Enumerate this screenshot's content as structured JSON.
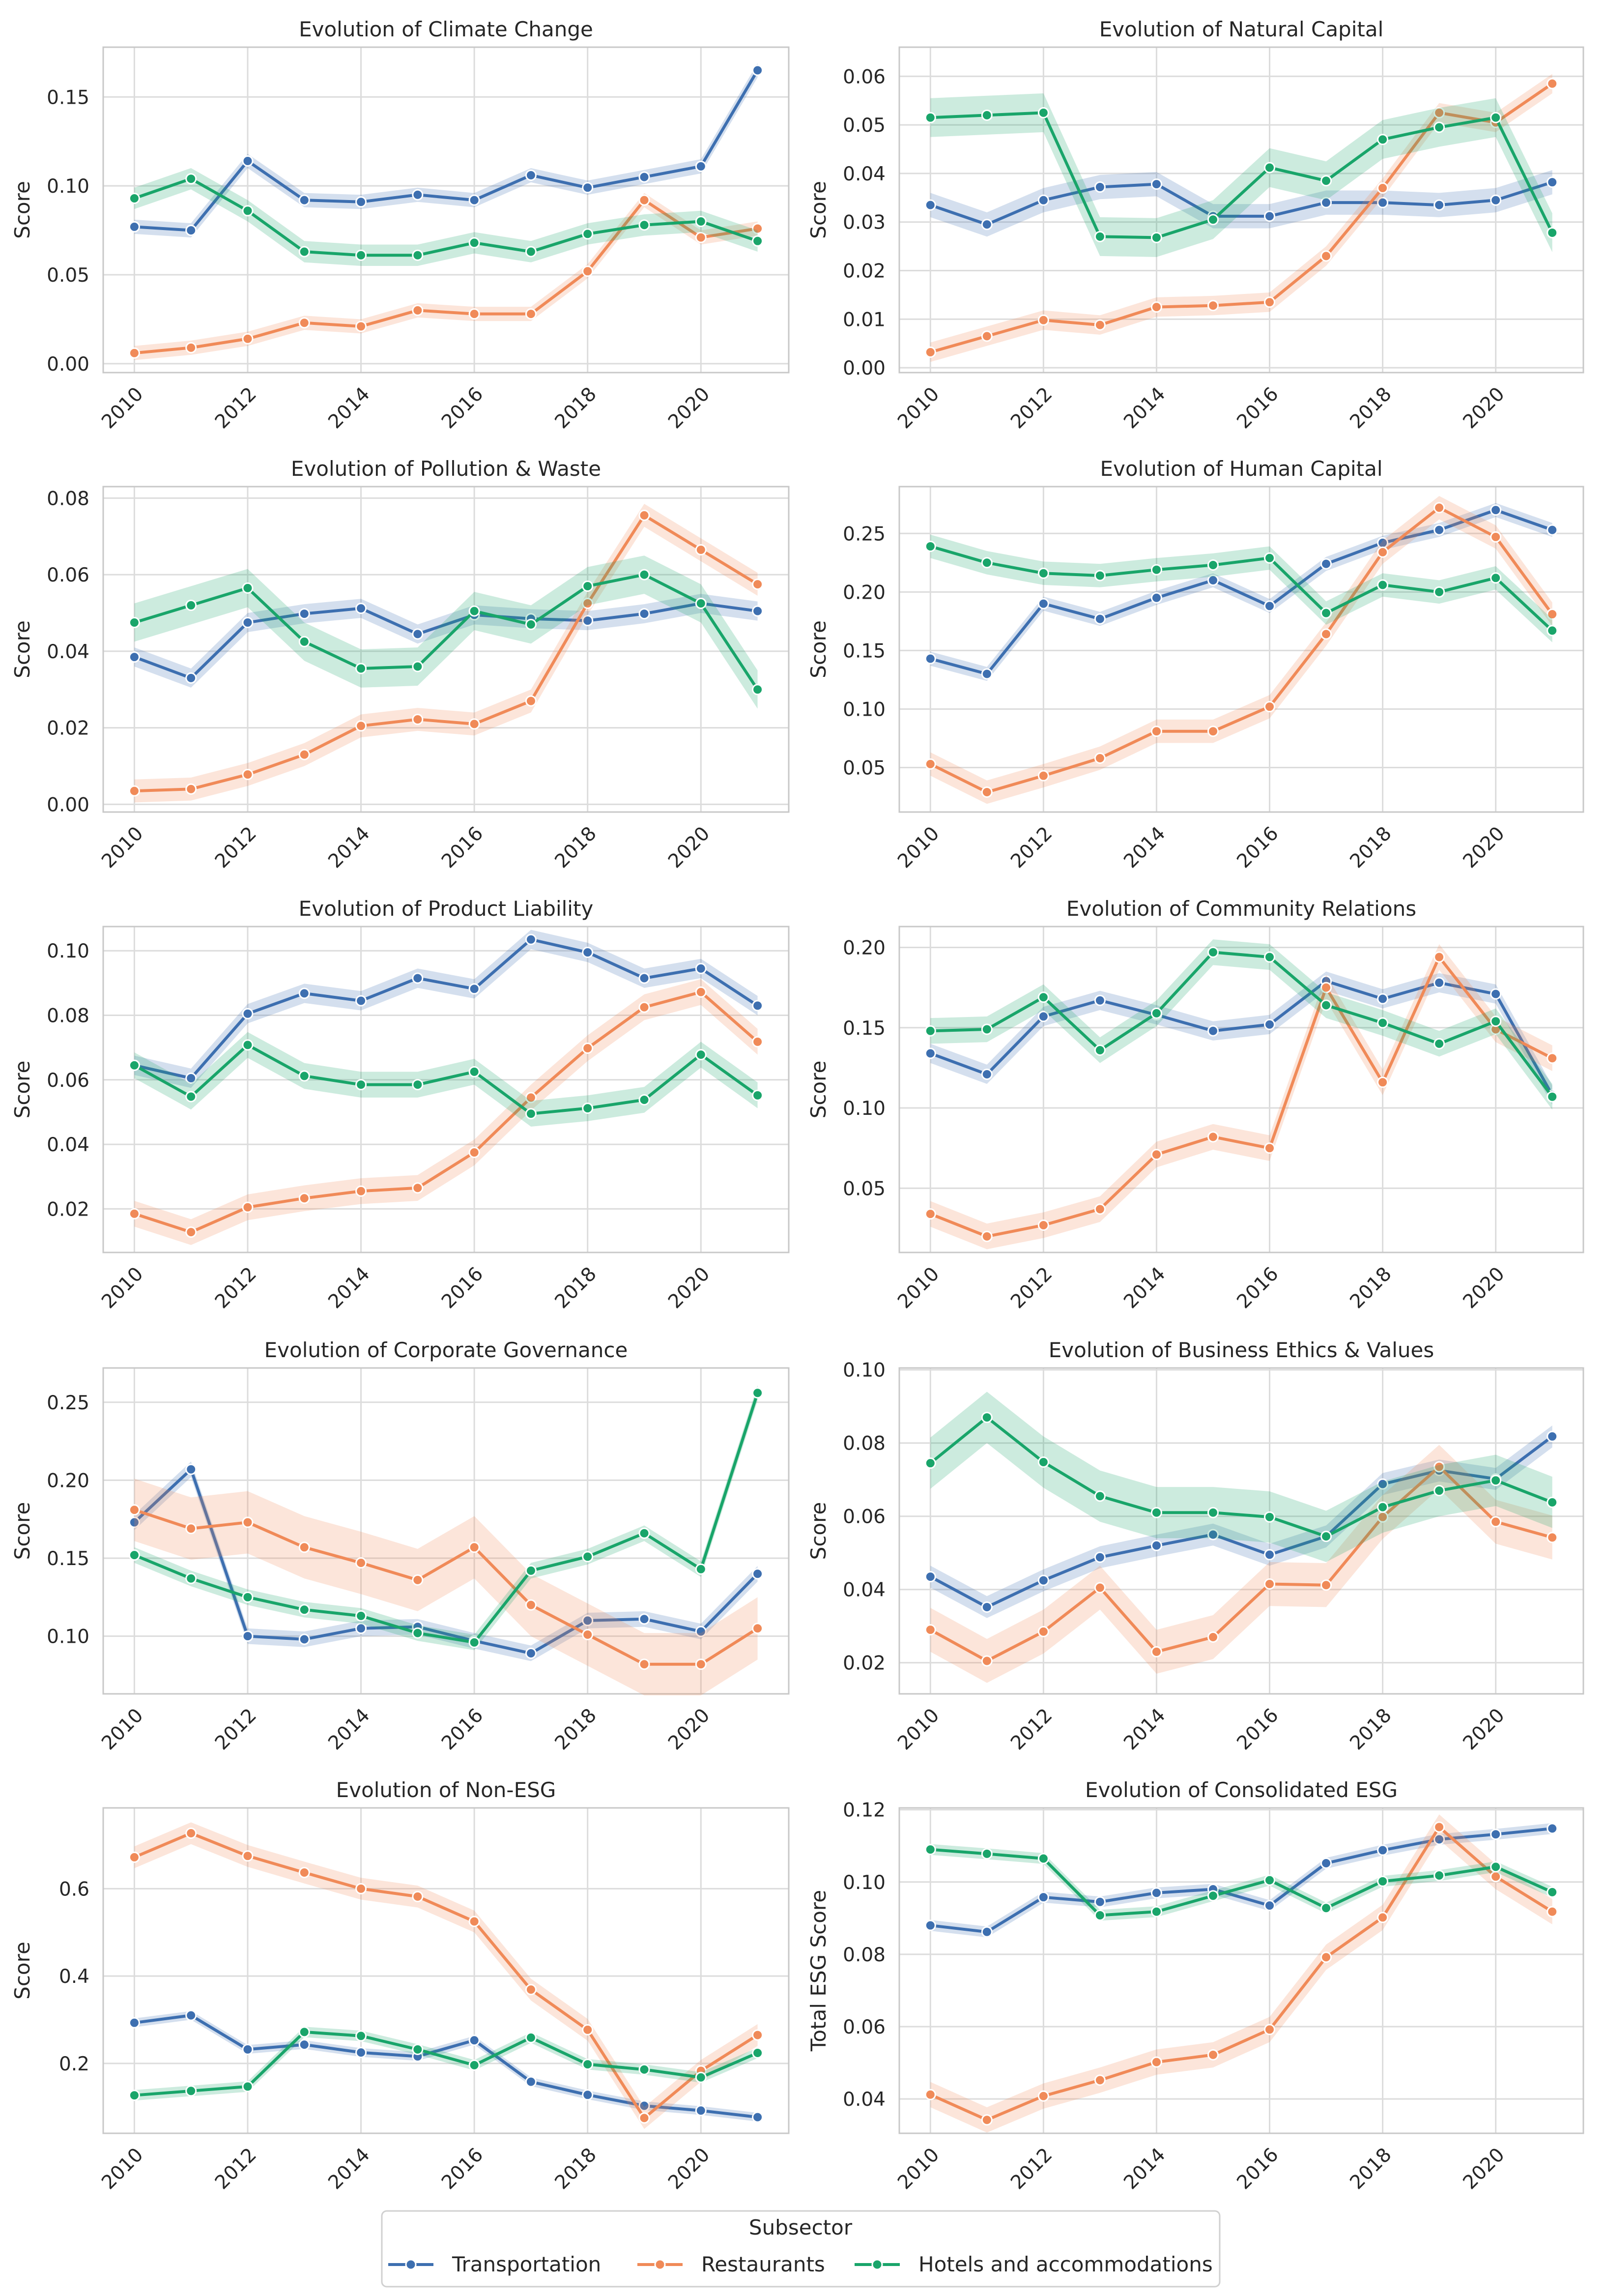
{
  "figure": {
    "ylabel_default": "Score"
  },
  "legend": {
    "title": "Subsector",
    "entries": [
      "Transportation",
      "Restaurants",
      "Hotels and accommodations"
    ],
    "colors": [
      "#3d6fb0",
      "#f08a58",
      "#19a56a"
    ],
    "placement": "bottom-center"
  },
  "chart_data": [
    {
      "type": "line",
      "title": "Evolution of Climate Change",
      "xlabel": "",
      "ylabel": "Score",
      "x": [
        2010,
        2011,
        2012,
        2013,
        2014,
        2015,
        2016,
        2017,
        2018,
        2019,
        2020,
        2021
      ],
      "xticks": [
        "2010",
        "2012",
        "2014",
        "2016",
        "2018",
        "2020"
      ],
      "ylim": [
        -0.005,
        0.178
      ],
      "yticks": [
        0.0,
        0.05,
        0.1,
        0.15
      ],
      "ytick_labels": [
        "0.00",
        "0.05",
        "0.10",
        "0.15"
      ],
      "series": [
        {
          "name": "Transportation",
          "values": [
            0.077,
            0.075,
            0.114,
            0.092,
            0.091,
            0.095,
            0.092,
            0.106,
            0.099,
            0.105,
            0.111,
            0.165
          ],
          "band": 0.004
        },
        {
          "name": "Restaurants",
          "values": [
            0.006,
            0.009,
            0.014,
            0.023,
            0.021,
            0.03,
            0.028,
            0.028,
            0.052,
            0.092,
            0.071,
            0.076
          ],
          "band": 0.004
        },
        {
          "name": "Hotels and accommodations",
          "values": [
            0.093,
            0.104,
            0.086,
            0.063,
            0.061,
            0.061,
            0.068,
            0.063,
            0.073,
            0.078,
            0.08,
            0.069
          ],
          "band": 0.006
        }
      ]
    },
    {
      "type": "line",
      "title": "Evolution of Natural Capital",
      "xlabel": "",
      "ylabel": "Score",
      "x": [
        2010,
        2011,
        2012,
        2013,
        2014,
        2015,
        2016,
        2017,
        2018,
        2019,
        2020,
        2021
      ],
      "xticks": [
        "2010",
        "2012",
        "2014",
        "2016",
        "2018",
        "2020"
      ],
      "ylim": [
        -0.001,
        0.066
      ],
      "yticks": [
        0.0,
        0.01,
        0.02,
        0.03,
        0.04,
        0.05,
        0.06
      ],
      "ytick_labels": [
        "0.00",
        "0.01",
        "0.02",
        "0.03",
        "0.04",
        "0.05",
        "0.06"
      ],
      "series": [
        {
          "name": "Transportation",
          "values": [
            0.0335,
            0.0295,
            0.0345,
            0.0372,
            0.0378,
            0.0312,
            0.0312,
            0.034,
            0.034,
            0.0335,
            0.0345,
            0.0382
          ],
          "band": 0.0025
        },
        {
          "name": "Restaurants",
          "values": [
            0.0032,
            0.0065,
            0.0098,
            0.0088,
            0.0125,
            0.0128,
            0.0135,
            0.023,
            0.037,
            0.0525,
            0.0505,
            0.0585
          ],
          "band": 0.002
        },
        {
          "name": "Hotels and accommodations",
          "values": [
            0.0515,
            0.052,
            0.0525,
            0.027,
            0.0268,
            0.0305,
            0.0412,
            0.0385,
            0.047,
            0.0495,
            0.0515,
            0.0278
          ],
          "band": 0.004
        }
      ]
    },
    {
      "type": "line",
      "title": "Evolution of Pollution & Waste",
      "xlabel": "",
      "ylabel": "Score",
      "x": [
        2010,
        2011,
        2012,
        2013,
        2014,
        2015,
        2016,
        2017,
        2018,
        2019,
        2020,
        2021
      ],
      "xticks": [
        "2010",
        "2012",
        "2014",
        "2016",
        "2018",
        "2020"
      ],
      "ylim": [
        -0.002,
        0.083
      ],
      "yticks": [
        0.0,
        0.02,
        0.04,
        0.06,
        0.08
      ],
      "ytick_labels": [
        "0.00",
        "0.02",
        "0.04",
        "0.06",
        "0.08"
      ],
      "series": [
        {
          "name": "Transportation",
          "values": [
            0.0385,
            0.033,
            0.0475,
            0.0498,
            0.0512,
            0.0445,
            0.0495,
            0.0485,
            0.048,
            0.0498,
            0.0525,
            0.0505
          ],
          "band": 0.0025
        },
        {
          "name": "Restaurants",
          "values": [
            0.0035,
            0.004,
            0.0078,
            0.013,
            0.0205,
            0.0222,
            0.021,
            0.027,
            0.0525,
            0.0755,
            0.0665,
            0.0575
          ],
          "band": 0.003
        },
        {
          "name": "Hotels and accommodations",
          "values": [
            0.0475,
            0.052,
            0.0565,
            0.0425,
            0.0355,
            0.036,
            0.0505,
            0.047,
            0.057,
            0.06,
            0.0525,
            0.03
          ],
          "band": 0.005
        }
      ]
    },
    {
      "type": "line",
      "title": "Evolution of Human Capital",
      "xlabel": "",
      "ylabel": "Score",
      "x": [
        2010,
        2011,
        2012,
        2013,
        2014,
        2015,
        2016,
        2017,
        2018,
        2019,
        2020,
        2021
      ],
      "xticks": [
        "2010",
        "2012",
        "2014",
        "2016",
        "2018",
        "2020"
      ],
      "ylim": [
        0.012,
        0.29
      ],
      "yticks": [
        0.05,
        0.1,
        0.15,
        0.2,
        0.25
      ],
      "ytick_labels": [
        "0.05",
        "0.10",
        "0.15",
        "0.20",
        "0.25"
      ],
      "series": [
        {
          "name": "Transportation",
          "values": [
            0.143,
            0.13,
            0.19,
            0.177,
            0.195,
            0.21,
            0.188,
            0.224,
            0.242,
            0.253,
            0.27,
            0.253
          ],
          "band": 0.006
        },
        {
          "name": "Restaurants",
          "values": [
            0.053,
            0.029,
            0.043,
            0.058,
            0.081,
            0.081,
            0.102,
            0.164,
            0.234,
            0.272,
            0.247,
            0.181
          ],
          "band": 0.01
        },
        {
          "name": "Hotels and accommodations",
          "values": [
            0.239,
            0.225,
            0.216,
            0.214,
            0.219,
            0.223,
            0.229,
            0.182,
            0.206,
            0.2,
            0.212,
            0.167
          ],
          "band": 0.01
        }
      ]
    },
    {
      "type": "line",
      "title": "Evolution of Product Liability",
      "xlabel": "",
      "ylabel": "Score",
      "x": [
        2010,
        2011,
        2012,
        2013,
        2014,
        2015,
        2016,
        2017,
        2018,
        2019,
        2020,
        2021
      ],
      "xticks": [
        "2010",
        "2012",
        "2014",
        "2016",
        "2018",
        "2020"
      ],
      "ylim": [
        0.0065,
        0.1075
      ],
      "yticks": [
        0.02,
        0.04,
        0.06,
        0.08,
        0.1
      ],
      "ytick_labels": [
        "0.02",
        "0.04",
        "0.06",
        "0.08",
        "0.10"
      ],
      "series": [
        {
          "name": "Transportation",
          "values": [
            0.0645,
            0.0605,
            0.0805,
            0.0868,
            0.0845,
            0.0915,
            0.0882,
            0.1035,
            0.0995,
            0.0915,
            0.0945,
            0.083
          ],
          "band": 0.003
        },
        {
          "name": "Restaurants",
          "values": [
            0.0185,
            0.0128,
            0.0205,
            0.0233,
            0.0255,
            0.0265,
            0.0375,
            0.0545,
            0.0698,
            0.0825,
            0.0872,
            0.0718
          ],
          "band": 0.004
        },
        {
          "name": "Hotels and accommodations",
          "values": [
            0.0645,
            0.0548,
            0.0708,
            0.0612,
            0.0585,
            0.0585,
            0.0625,
            0.0495,
            0.0512,
            0.0538,
            0.0678,
            0.0552
          ],
          "band": 0.004
        }
      ]
    },
    {
      "type": "line",
      "title": "Evolution of Community Relations",
      "xlabel": "",
      "ylabel": "Score",
      "x": [
        2010,
        2011,
        2012,
        2013,
        2014,
        2015,
        2016,
        2017,
        2018,
        2019,
        2020,
        2021
      ],
      "xticks": [
        "2010",
        "2012",
        "2014",
        "2016",
        "2018",
        "2020"
      ],
      "ylim": [
        0.01,
        0.213
      ],
      "yticks": [
        0.05,
        0.1,
        0.15,
        0.2
      ],
      "ytick_labels": [
        "0.05",
        "0.10",
        "0.15",
        "0.20"
      ],
      "series": [
        {
          "name": "Transportation",
          "values": [
            0.134,
            0.121,
            0.157,
            0.167,
            0.158,
            0.148,
            0.152,
            0.179,
            0.168,
            0.178,
            0.171,
            0.108
          ],
          "band": 0.006
        },
        {
          "name": "Restaurants",
          "values": [
            0.034,
            0.02,
            0.027,
            0.037,
            0.071,
            0.082,
            0.075,
            0.175,
            0.116,
            0.194,
            0.149,
            0.131
          ],
          "band": 0.008
        },
        {
          "name": "Hotels and accommodations",
          "values": [
            0.148,
            0.149,
            0.169,
            0.136,
            0.159,
            0.197,
            0.194,
            0.164,
            0.153,
            0.14,
            0.154,
            0.107
          ],
          "band": 0.008
        }
      ]
    },
    {
      "type": "line",
      "title": "Evolution of Corporate Governance",
      "xlabel": "",
      "ylabel": "Score",
      "x": [
        2010,
        2011,
        2012,
        2013,
        2014,
        2015,
        2016,
        2017,
        2018,
        2019,
        2020,
        2021
      ],
      "xticks": [
        "2010",
        "2012",
        "2014",
        "2016",
        "2018",
        "2020"
      ],
      "ylim": [
        0.063,
        0.272
      ],
      "yticks": [
        0.1,
        0.15,
        0.2,
        0.25
      ],
      "ytick_labels": [
        "0.10",
        "0.15",
        "0.20",
        "0.25"
      ],
      "series": [
        {
          "name": "Transportation",
          "values": [
            0.173,
            0.207,
            0.1,
            0.098,
            0.105,
            0.106,
            0.097,
            0.089,
            0.11,
            0.111,
            0.103,
            0.14
          ],
          "band": 0.005
        },
        {
          "name": "Restaurants",
          "values": [
            0.181,
            0.169,
            0.173,
            0.157,
            0.147,
            0.136,
            0.157,
            0.12,
            0.101,
            0.082,
            0.082,
            0.105
          ],
          "band": 0.02
        },
        {
          "name": "Hotels and accommodations",
          "values": [
            0.152,
            0.137,
            0.125,
            0.117,
            0.113,
            0.102,
            0.096,
            0.142,
            0.151,
            0.166,
            0.143,
            0.256
          ],
          "band": 0.005
        }
      ]
    },
    {
      "type": "line",
      "title": "Evolution of Business Ethics & Values",
      "xlabel": "",
      "ylabel": "Score",
      "x": [
        2010,
        2011,
        2012,
        2013,
        2014,
        2015,
        2016,
        2017,
        2018,
        2019,
        2020,
        2021
      ],
      "xticks": [
        "2010",
        "2012",
        "2014",
        "2016",
        "2018",
        "2020"
      ],
      "ylim": [
        0.0115,
        0.1005
      ],
      "yticks": [
        0.02,
        0.04,
        0.06,
        0.08,
        0.1
      ],
      "ytick_labels": [
        "0.02",
        "0.04",
        "0.06",
        "0.08",
        "0.10"
      ],
      "series": [
        {
          "name": "Transportation",
          "values": [
            0.0435,
            0.0352,
            0.0425,
            0.0488,
            0.052,
            0.055,
            0.0495,
            0.0545,
            0.0688,
            0.0725,
            0.0702,
            0.0818
          ],
          "band": 0.003
        },
        {
          "name": "Restaurants",
          "values": [
            0.029,
            0.0205,
            0.0285,
            0.0405,
            0.023,
            0.027,
            0.0415,
            0.0412,
            0.0598,
            0.0735,
            0.0585,
            0.0542
          ],
          "band": 0.006
        },
        {
          "name": "Hotels and accommodations",
          "values": [
            0.0745,
            0.087,
            0.0748,
            0.0655,
            0.061,
            0.061,
            0.0598,
            0.0545,
            0.0625,
            0.067,
            0.0698,
            0.0638
          ],
          "band": 0.007
        }
      ]
    },
    {
      "type": "line",
      "title": "Evolution of Non-ESG",
      "xlabel": "",
      "ylabel": "Score",
      "x": [
        2010,
        2011,
        2012,
        2013,
        2014,
        2015,
        2016,
        2017,
        2018,
        2019,
        2020,
        2021
      ],
      "xticks": [
        "2010",
        "2012",
        "2014",
        "2016",
        "2018",
        "2020"
      ],
      "ylim": [
        0.04,
        0.785
      ],
      "yticks": [
        0.2,
        0.4,
        0.6
      ],
      "ytick_labels": [
        "0.2",
        "0.4",
        "0.6"
      ],
      "series": [
        {
          "name": "Transportation",
          "values": [
            0.293,
            0.31,
            0.232,
            0.243,
            0.225,
            0.216,
            0.253,
            0.158,
            0.128,
            0.103,
            0.092,
            0.077
          ],
          "band": 0.01
        },
        {
          "name": "Restaurants",
          "values": [
            0.672,
            0.727,
            0.675,
            0.637,
            0.6,
            0.582,
            0.525,
            0.369,
            0.277,
            0.075,
            0.183,
            0.265
          ],
          "band": 0.025
        },
        {
          "name": "Hotels and accommodations",
          "values": [
            0.127,
            0.137,
            0.147,
            0.272,
            0.263,
            0.232,
            0.196,
            0.259,
            0.198,
            0.186,
            0.168,
            0.224
          ],
          "band": 0.012
        }
      ]
    },
    {
      "type": "line",
      "title": "Evolution of Consolidated ESG",
      "xlabel": "",
      "ylabel": "Total ESG Score",
      "x": [
        2010,
        2011,
        2012,
        2013,
        2014,
        2015,
        2016,
        2017,
        2018,
        2019,
        2020,
        2021
      ],
      "xticks": [
        "2010",
        "2012",
        "2014",
        "2016",
        "2018",
        "2020"
      ],
      "ylim": [
        0.0305,
        0.1205
      ],
      "yticks": [
        0.04,
        0.06,
        0.08,
        0.1,
        0.12
      ],
      "ytick_labels": [
        "0.04",
        "0.06",
        "0.08",
        "0.10",
        "0.12"
      ],
      "series": [
        {
          "name": "Transportation",
          "values": [
            0.088,
            0.0862,
            0.0958,
            0.0945,
            0.097,
            0.098,
            0.0935,
            0.1052,
            0.1088,
            0.1118,
            0.1132,
            0.1148
          ],
          "band": 0.0015
        },
        {
          "name": "Restaurants",
          "values": [
            0.0412,
            0.0342,
            0.0408,
            0.0452,
            0.0502,
            0.0522,
            0.0592,
            0.0792,
            0.0902,
            0.1152,
            0.1015,
            0.0918
          ],
          "band": 0.0035
        },
        {
          "name": "Hotels and accommodations",
          "values": [
            0.109,
            0.1078,
            0.1065,
            0.0908,
            0.0918,
            0.0962,
            0.1005,
            0.0928,
            0.1002,
            0.1018,
            0.1042,
            0.0972
          ],
          "band": 0.0015
        }
      ]
    }
  ]
}
